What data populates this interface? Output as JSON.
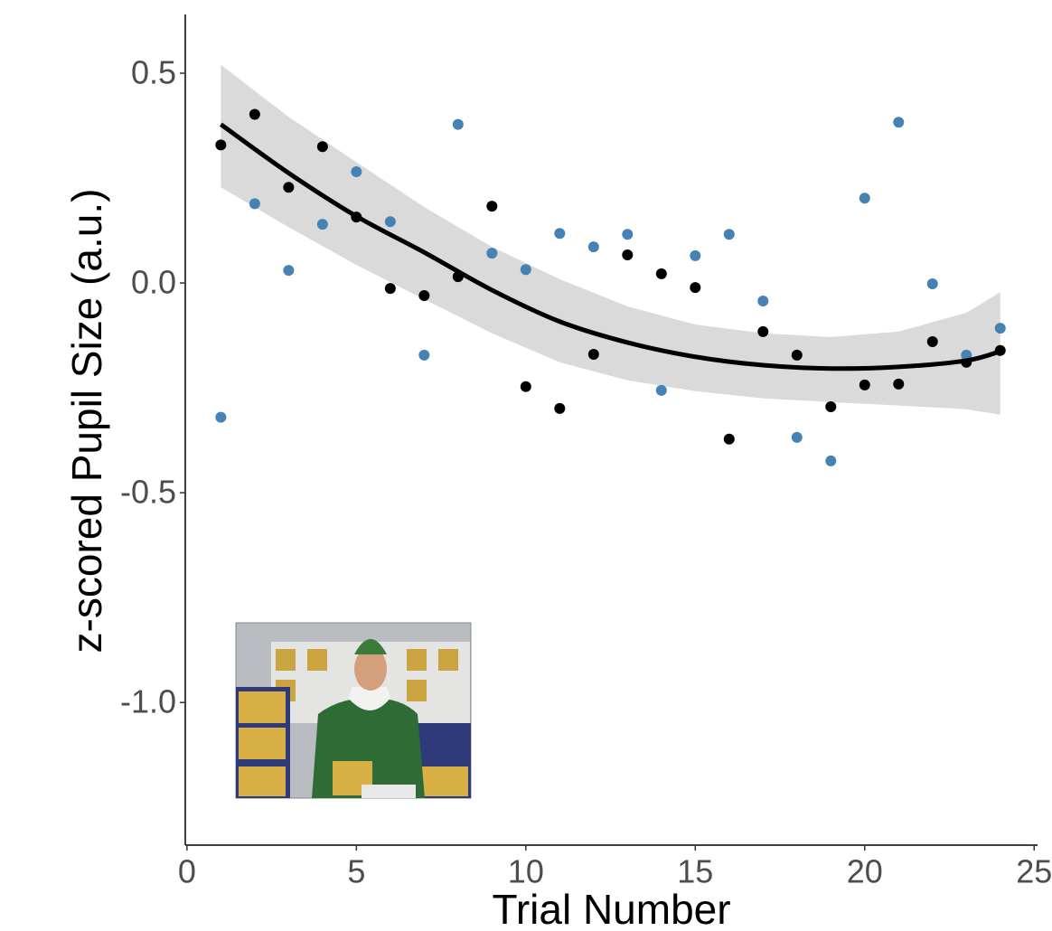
{
  "chart_data": {
    "type": "scatter",
    "x_label": "Trial Number",
    "y_label": "z-scored Pupil Size (a.u.)",
    "xlim": [
      -0.05,
      25.1
    ],
    "ylim": [
      -1.34,
      0.64
    ],
    "xticks": [
      0,
      5,
      10,
      15,
      20,
      25
    ],
    "yticks": [
      0.5,
      {
        "value": 0,
        "label": "0.0"
      },
      -0.5,
      {
        "value": -1,
        "label": "-1.0"
      }
    ],
    "grid": false,
    "series": [
      {
        "color": "#000000",
        "x": [
          1,
          2,
          3,
          4,
          5,
          6,
          7,
          8,
          9,
          10,
          11,
          12,
          13,
          14,
          15,
          16,
          17,
          18,
          19,
          20,
          21,
          22,
          23,
          24
        ],
        "values": [
          0.329,
          0.402,
          0.228,
          0.325,
          0.157,
          -0.013,
          -0.03,
          0.015,
          0.183,
          -0.247,
          -0.299,
          -0.17,
          0.067,
          0.022,
          -0.011,
          -0.372,
          -0.116,
          -0.172,
          -0.295,
          -0.243,
          -0.241,
          -0.14,
          -0.189,
          -0.161
        ]
      },
      {
        "color": "#4682b4",
        "x": [
          1,
          2,
          3,
          4,
          5,
          6,
          7,
          8,
          9,
          10,
          11,
          12,
          13,
          14,
          15,
          16,
          17,
          18,
          19,
          20,
          21,
          22,
          23,
          24
        ],
        "values": [
          -0.32,
          0.189,
          0.03,
          0.14,
          0.265,
          0.146,
          -0.172,
          0.378,
          0.071,
          0.032,
          0.118,
          0.086,
          0.116,
          -0.256,
          0.065,
          0.116,
          -0.043,
          -0.368,
          -0.424,
          0.202,
          0.383,
          -0.002,
          -0.172,
          -0.108
        ]
      }
    ],
    "fit": {
      "color": "#000000",
      "band_color": "#d3d3d3",
      "x": [
        1,
        3,
        5,
        7,
        9,
        11,
        13,
        15,
        17,
        19,
        21,
        23,
        24
      ],
      "values": [
        0.378,
        0.262,
        0.159,
        0.073,
        -0.017,
        -0.092,
        -0.142,
        -0.176,
        -0.196,
        -0.204,
        -0.2,
        -0.185,
        -0.163
      ],
      "lower": [
        0.228,
        0.133,
        0.043,
        -0.039,
        -0.12,
        -0.189,
        -0.232,
        -0.258,
        -0.275,
        -0.284,
        -0.292,
        -0.301,
        -0.314
      ],
      "upper": [
        0.52,
        0.396,
        0.288,
        0.181,
        0.086,
        0.009,
        -0.056,
        -0.099,
        -0.12,
        -0.129,
        -0.116,
        -0.071,
        -0.022
      ]
    }
  }
}
